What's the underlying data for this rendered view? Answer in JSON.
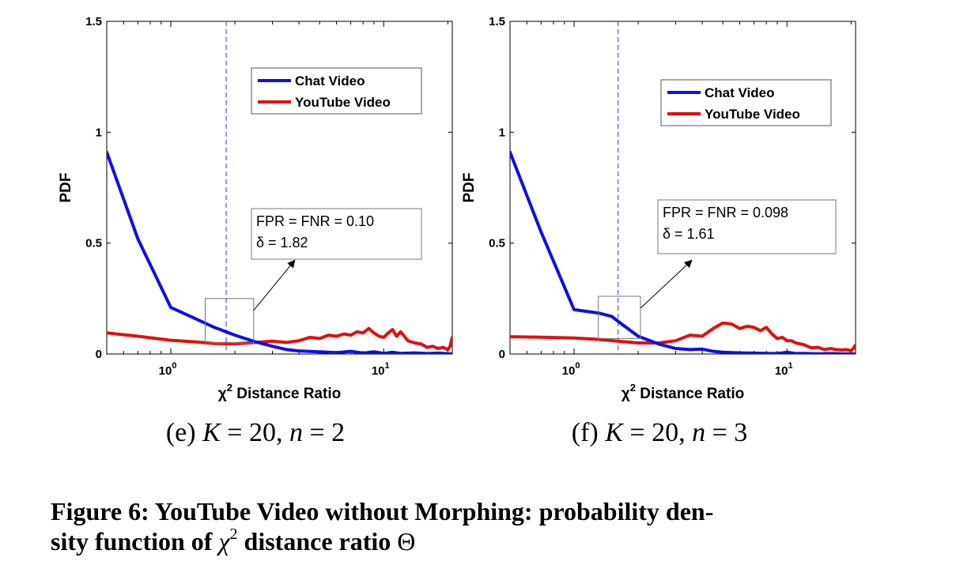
{
  "chart_data": [
    {
      "type": "line",
      "panel_label": "(e)",
      "caption_params": [
        {
          "name": "K",
          "value": "20"
        },
        {
          "name": "n",
          "value": "2"
        }
      ],
      "xlabel_symbol": "χ",
      "xlabel_superscript": "2",
      "xlabel": "Distance Ratio",
      "ylabel": "PDF",
      "xscale": "log",
      "xlim": [
        0.5,
        21
      ],
      "ylim": [
        0,
        1.5
      ],
      "yticks": [
        {
          "value": 0,
          "label": "0"
        },
        {
          "value": 0.5,
          "label": "0.5"
        },
        {
          "value": 1,
          "label": "1"
        },
        {
          "value": 1.5,
          "label": "1.5"
        }
      ],
      "xticks": [
        {
          "value": 1,
          "base": "10",
          "exp": "0"
        },
        {
          "value": 10,
          "base": "10",
          "exp": "1"
        }
      ],
      "threshold_line": {
        "x": 1.82,
        "style": "dashed"
      },
      "annotation": {
        "lines": [
          "FPR = FNR = 0.10",
          "δ = 1.82"
        ],
        "zoom_box": {
          "x": [
            1.45,
            2.45
          ],
          "y": [
            0.05,
            0.25
          ]
        },
        "arrow_target": {
          "x": 3.8,
          "y": 0.42
        }
      },
      "legend": {
        "position": "top-right",
        "entries": [
          "Chat Video",
          "YouTube Video"
        ]
      },
      "series": [
        {
          "name": "Chat Video",
          "color": "#1010e0",
          "points": [
            [
              0.5,
              0.91
            ],
            [
              0.7,
              0.52
            ],
            [
              1.0,
              0.21
            ],
            [
              1.3,
              0.16
            ],
            [
              1.6,
              0.12
            ],
            [
              2.0,
              0.085
            ],
            [
              2.5,
              0.055
            ],
            [
              3.0,
              0.035
            ],
            [
              3.5,
              0.02
            ],
            [
              4.0,
              0.014
            ],
            [
              5.0,
              0.01
            ],
            [
              6.0,
              0.006
            ],
            [
              7.0,
              0.012
            ],
            [
              8.0,
              0.004
            ],
            [
              9.0,
              0.01
            ],
            [
              10.0,
              0.003
            ],
            [
              11.0,
              0.008
            ],
            [
              12.0,
              0.003
            ],
            [
              14.0,
              0.005
            ],
            [
              16.0,
              0.002
            ],
            [
              18.0,
              0.004
            ],
            [
              21.0,
              0.0
            ]
          ]
        },
        {
          "name": "YouTube Video",
          "color": "#e01010",
          "points": [
            [
              0.5,
              0.095
            ],
            [
              0.7,
              0.08
            ],
            [
              1.0,
              0.062
            ],
            [
              1.3,
              0.055
            ],
            [
              1.6,
              0.047
            ],
            [
              2.0,
              0.046
            ],
            [
              2.5,
              0.052
            ],
            [
              3.0,
              0.058
            ],
            [
              3.5,
              0.052
            ],
            [
              4.0,
              0.06
            ],
            [
              4.5,
              0.075
            ],
            [
              5.0,
              0.07
            ],
            [
              5.5,
              0.085
            ],
            [
              6.0,
              0.08
            ],
            [
              6.5,
              0.09
            ],
            [
              7.0,
              0.085
            ],
            [
              7.5,
              0.1
            ],
            [
              8.0,
              0.095
            ],
            [
              8.5,
              0.115
            ],
            [
              9.0,
              0.095
            ],
            [
              9.5,
              0.08
            ],
            [
              10.0,
              0.075
            ],
            [
              10.5,
              0.095
            ],
            [
              11.0,
              0.11
            ],
            [
              11.5,
              0.08
            ],
            [
              12.0,
              0.1
            ],
            [
              12.5,
              0.08
            ],
            [
              13.0,
              0.06
            ],
            [
              14.0,
              0.05
            ],
            [
              15.0,
              0.045
            ],
            [
              16.0,
              0.03
            ],
            [
              17.0,
              0.035
            ],
            [
              18.0,
              0.025
            ],
            [
              19.0,
              0.03
            ],
            [
              20.0,
              0.02
            ],
            [
              20.5,
              0.035
            ],
            [
              21.0,
              0.075
            ]
          ]
        }
      ]
    },
    {
      "type": "line",
      "panel_label": "(f)",
      "caption_params": [
        {
          "name": "K",
          "value": "20"
        },
        {
          "name": "n",
          "value": "3"
        }
      ],
      "xlabel_symbol": "χ",
      "xlabel_superscript": "2",
      "xlabel": "Distance Ratio",
      "ylabel": "PDF",
      "xscale": "log",
      "xlim": [
        0.5,
        21
      ],
      "ylim": [
        0,
        1.5
      ],
      "yticks": [
        {
          "value": 0,
          "label": "0"
        },
        {
          "value": 0.5,
          "label": "0.5"
        },
        {
          "value": 1,
          "label": "1"
        },
        {
          "value": 1.5,
          "label": "1.5"
        }
      ],
      "xticks": [
        {
          "value": 1,
          "base": "10",
          "exp": "0"
        },
        {
          "value": 10,
          "base": "10",
          "exp": "1"
        }
      ],
      "threshold_line": {
        "x": 1.61,
        "style": "dashed"
      },
      "annotation": {
        "lines": [
          "FPR = FNR = 0.098",
          "δ = 1.61"
        ],
        "zoom_box": {
          "x": [
            1.3,
            2.05
          ],
          "y": [
            0.07,
            0.26
          ]
        },
        "arrow_target": {
          "x": 3.55,
          "y": 0.42
        }
      },
      "legend": {
        "position": "top-right",
        "entries": [
          "Chat Video",
          "YouTube Video"
        ]
      },
      "series": [
        {
          "name": "Chat Video",
          "color": "#1010e0",
          "points": [
            [
              0.5,
              0.91
            ],
            [
              0.7,
              0.55
            ],
            [
              1.0,
              0.2
            ],
            [
              1.3,
              0.185
            ],
            [
              1.5,
              0.17
            ],
            [
              1.7,
              0.13
            ],
            [
              2.0,
              0.08
            ],
            [
              2.5,
              0.045
            ],
            [
              3.0,
              0.025
            ],
            [
              3.5,
              0.02
            ],
            [
              4.0,
              0.022
            ],
            [
              4.5,
              0.012
            ],
            [
              5.0,
              0.008
            ],
            [
              6.0,
              0.005
            ],
            [
              7.0,
              0.004
            ],
            [
              8.0,
              0.003
            ],
            [
              9.0,
              0.002
            ],
            [
              10.0,
              0.008
            ],
            [
              11.0,
              0.002
            ],
            [
              12.0,
              0.003
            ],
            [
              14.0,
              0.001
            ],
            [
              16.0,
              0.002
            ],
            [
              18.0,
              0.001
            ],
            [
              21.0,
              0.0
            ]
          ]
        },
        {
          "name": "YouTube Video",
          "color": "#e01010",
          "points": [
            [
              0.5,
              0.078
            ],
            [
              0.7,
              0.076
            ],
            [
              1.0,
              0.072
            ],
            [
              1.3,
              0.066
            ],
            [
              1.6,
              0.058
            ],
            [
              2.0,
              0.05
            ],
            [
              2.5,
              0.05
            ],
            [
              3.0,
              0.06
            ],
            [
              3.5,
              0.085
            ],
            [
              4.0,
              0.08
            ],
            [
              4.5,
              0.115
            ],
            [
              5.0,
              0.14
            ],
            [
              5.5,
              0.135
            ],
            [
              6.0,
              0.115
            ],
            [
              6.5,
              0.125
            ],
            [
              7.0,
              0.12
            ],
            [
              7.5,
              0.105
            ],
            [
              8.0,
              0.12
            ],
            [
              8.5,
              0.09
            ],
            [
              9.0,
              0.07
            ],
            [
              9.5,
              0.075
            ],
            [
              10.0,
              0.06
            ],
            [
              10.5,
              0.06
            ],
            [
              11.0,
              0.05
            ],
            [
              12.0,
              0.042
            ],
            [
              13.0,
              0.028
            ],
            [
              14.0,
              0.03
            ],
            [
              15.0,
              0.02
            ],
            [
              16.0,
              0.025
            ],
            [
              17.0,
              0.02
            ],
            [
              18.0,
              0.018
            ],
            [
              19.0,
              0.02
            ],
            [
              20.0,
              0.015
            ],
            [
              20.5,
              0.025
            ],
            [
              21.0,
              0.04
            ]
          ]
        }
      ]
    }
  ],
  "figure_caption": {
    "label": "Figure 6:",
    "line1": "YouTube Video without Morphing: probability den-",
    "line2_prefix": "sity function of",
    "line2_symbol": "χ",
    "line2_superscript": "2",
    "line2_suffix": "distance ratio",
    "line2_end_symbol": "Θ"
  }
}
